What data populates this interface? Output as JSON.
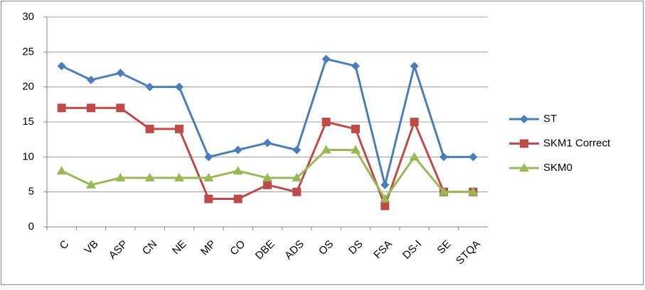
{
  "chart_data": {
    "type": "line",
    "categories": [
      "C",
      "VB",
      "ASP",
      "CN",
      "NE",
      "MP",
      "CO",
      "DBE",
      "ADS",
      "OS",
      "DS",
      "FSA",
      "DS-I",
      "SE",
      "STQA"
    ],
    "series": [
      {
        "name": "ST",
        "color": "#4a7ebb",
        "marker": "diamond",
        "values": [
          23,
          21,
          22,
          20,
          20,
          10,
          11,
          12,
          11,
          24,
          23,
          6,
          23,
          10,
          10
        ]
      },
      {
        "name": "SKM1 Correct",
        "color": "#be4b48",
        "marker": "square",
        "values": [
          17,
          17,
          17,
          14,
          14,
          4,
          4,
          6,
          5,
          15,
          14,
          3,
          15,
          5,
          5
        ]
      },
      {
        "name": "SKM0",
        "color": "#98b954",
        "marker": "triangle",
        "values": [
          8,
          6,
          7,
          7,
          7,
          7,
          8,
          7,
          7,
          11,
          11,
          4,
          10,
          5,
          5
        ]
      }
    ],
    "ylim": [
      0,
      30
    ],
    "yticks": [
      0,
      5,
      10,
      15,
      20,
      25,
      30
    ],
    "grid": true,
    "legend": "right"
  }
}
